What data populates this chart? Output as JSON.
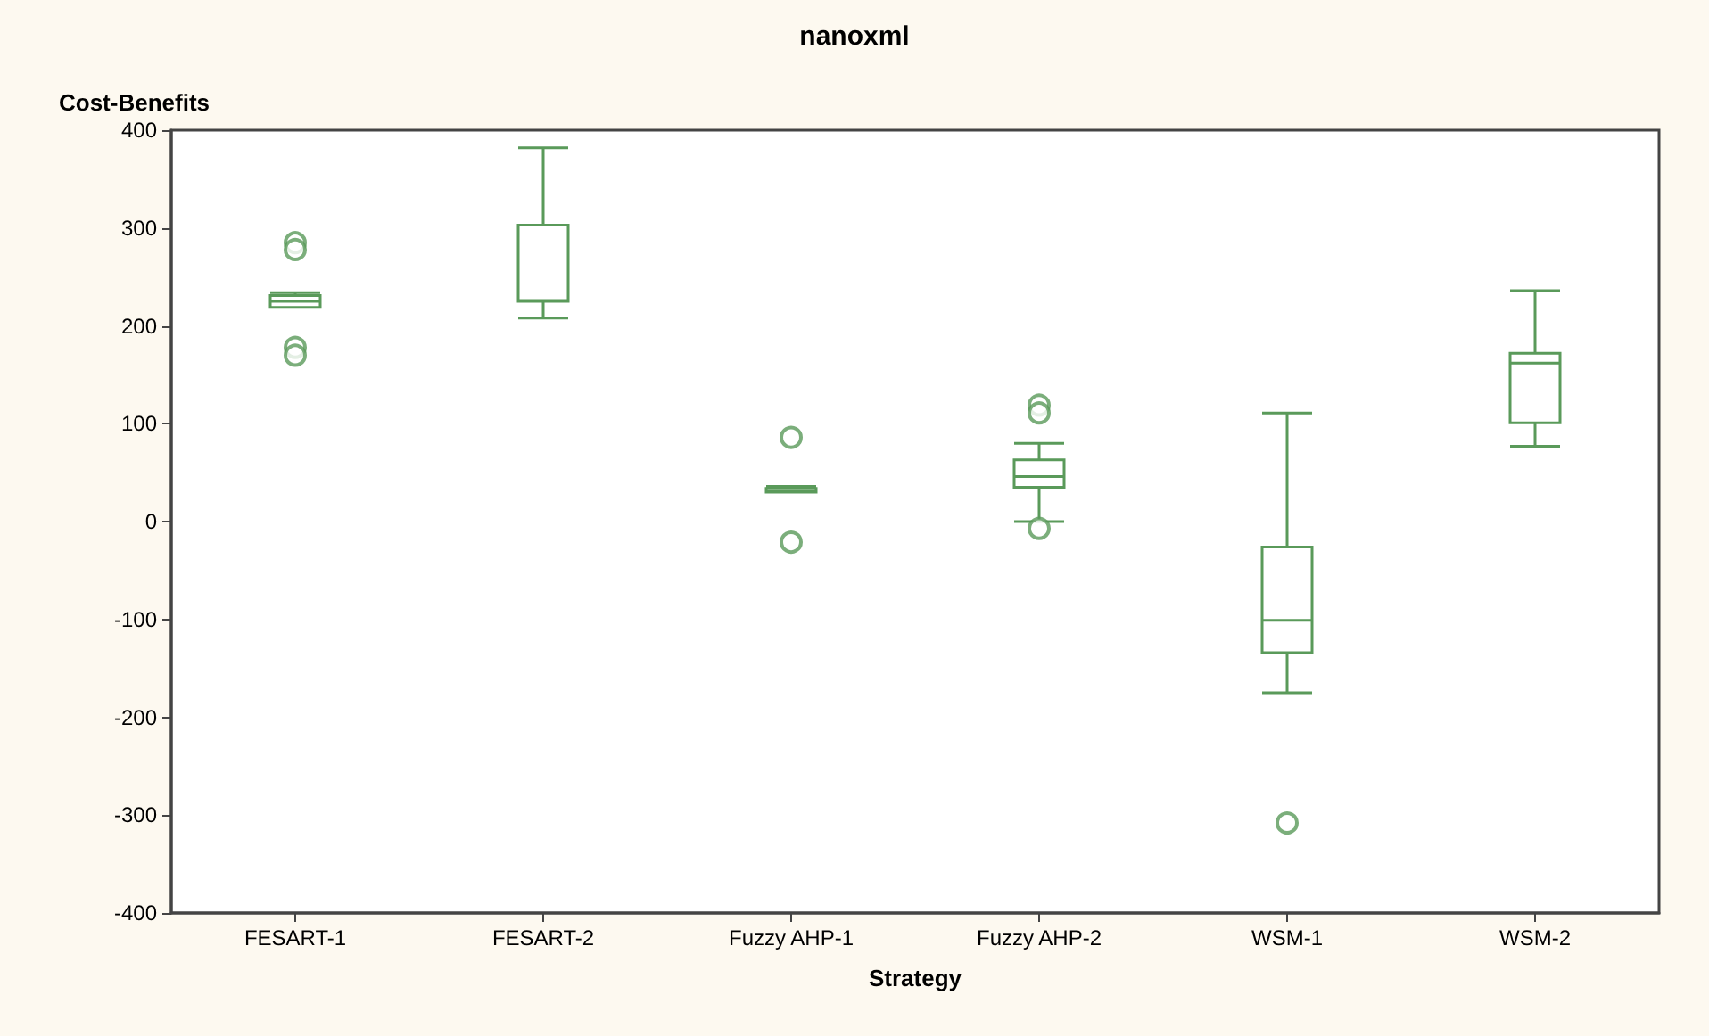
{
  "chart_data": {
    "type": "box",
    "title": "nanoxml",
    "xlabel": "Strategy",
    "ylabel": "Cost-Benefits",
    "categories": [
      "FESART-1",
      "FESART-2",
      "Fuzzy AHP-1",
      "Fuzzy AHP-2",
      "WSM-1",
      "WSM-2"
    ],
    "ylim": [
      -400,
      400
    ],
    "yticks": [
      -400,
      -300,
      -200,
      -100,
      0,
      100,
      200,
      300,
      400
    ],
    "series": [
      {
        "color": "#5a9a5a",
        "boxes": [
          {
            "low": 219,
            "q1": 219,
            "median": 225,
            "q3": 231,
            "high": 234,
            "outliers": [
              285,
              278,
              178,
              170
            ]
          },
          {
            "low": 208,
            "q1": 225,
            "median": 226,
            "q3": 303,
            "high": 382
          },
          {
            "low": 30,
            "q1": 30,
            "median": 31,
            "q3": 34,
            "high": 36,
            "outliers": [
              86,
              -21
            ]
          },
          {
            "low": 0,
            "q1": 35,
            "median": 46,
            "q3": 63,
            "high": 80,
            "outliers": [
              119,
              111,
              -7
            ]
          },
          {
            "low": -175,
            "q1": -134,
            "median": -101,
            "q3": -26,
            "high": 111,
            "outliers": [
              -308
            ]
          },
          {
            "low": 77,
            "q1": 101,
            "median": 162,
            "q3": 172,
            "high": 236
          }
        ]
      }
    ]
  }
}
